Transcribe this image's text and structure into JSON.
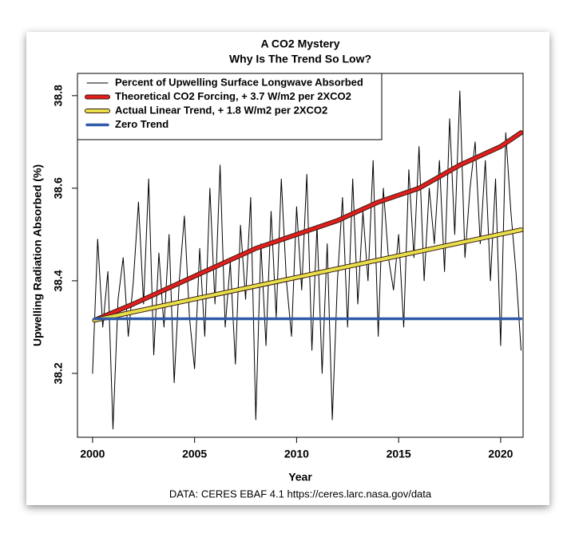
{
  "chart_data": {
    "type": "line",
    "title": "A CO2 Mystery",
    "subtitle": "Why Is The Trend So Low?",
    "x_label": "Year",
    "y_label": "Upwelling Radiation Absorbed (%)",
    "caption": "DATA: CERES EBAF 4.1 https://ceres.larc.nasa.gov/data",
    "xlim": [
      1999.26,
      2021.1
    ],
    "ylim": [
      38.062,
      38.848
    ],
    "xticks": [
      2000,
      2005,
      2010,
      2015,
      2020
    ],
    "yticks": [
      38.2,
      38.4,
      38.6,
      38.8
    ],
    "legend": "top-left",
    "series": [
      {
        "name": "Percent of Upwelling Surface Longwave Absorbed",
        "color": "#000000",
        "width": 1,
        "x": [
          2000,
          2000.25,
          2000.5,
          2000.75,
          2001,
          2001.25,
          2001.5,
          2001.75,
          2002,
          2002.25,
          2002.5,
          2002.75,
          2003,
          2003.25,
          2003.5,
          2003.75,
          2004,
          2004.25,
          2004.5,
          2004.75,
          2005,
          2005.25,
          2005.5,
          2005.75,
          2006,
          2006.25,
          2006.5,
          2006.75,
          2007,
          2007.25,
          2007.5,
          2007.75,
          2008,
          2008.25,
          2008.5,
          2008.75,
          2009,
          2009.25,
          2009.5,
          2009.75,
          2010,
          2010.25,
          2010.5,
          2010.75,
          2011,
          2011.25,
          2011.5,
          2011.75,
          2012,
          2012.25,
          2012.5,
          2012.75,
          2013,
          2013.25,
          2013.5,
          2013.75,
          2014,
          2014.25,
          2014.5,
          2014.75,
          2015,
          2015.25,
          2015.5,
          2015.75,
          2016,
          2016.25,
          2016.5,
          2016.75,
          2017,
          2017.25,
          2017.5,
          2017.75,
          2018,
          2018.25,
          2018.5,
          2018.75,
          2019,
          2019.25,
          2019.5,
          2019.75,
          2020,
          2020.25,
          2020.5,
          2020.75,
          2021
        ],
        "values": [
          38.2,
          38.49,
          38.3,
          38.42,
          38.08,
          38.36,
          38.45,
          38.28,
          38.4,
          38.57,
          38.35,
          38.62,
          38.24,
          38.46,
          38.3,
          38.5,
          38.18,
          38.4,
          38.54,
          38.32,
          38.21,
          38.47,
          38.28,
          38.6,
          38.35,
          38.65,
          38.3,
          38.44,
          38.22,
          38.52,
          38.36,
          38.58,
          38.1,
          38.48,
          38.26,
          38.55,
          38.32,
          38.62,
          38.4,
          38.28,
          38.56,
          38.38,
          38.63,
          38.25,
          38.52,
          38.2,
          38.48,
          38.1,
          38.4,
          38.58,
          38.3,
          38.62,
          38.35,
          38.55,
          38.4,
          38.66,
          38.28,
          38.6,
          38.45,
          38.38,
          38.5,
          38.3,
          38.64,
          38.45,
          38.69,
          38.4,
          38.6,
          38.48,
          38.66,
          38.42,
          38.75,
          38.5,
          38.81,
          38.45,
          38.6,
          38.7,
          38.48,
          38.66,
          38.4,
          38.62,
          38.26,
          38.72,
          38.55,
          38.42,
          38.25
        ]
      },
      {
        "name": "Theoretical CO2 Forcing, + 3.7 W/m2 per 2XCO2",
        "color": "#e01e1e",
        "width": 4,
        "outline": true,
        "x": [
          2000.1,
          2002,
          2004,
          2006,
          2008,
          2010,
          2012,
          2014,
          2016,
          2018,
          2020,
          2021
        ],
        "values": [
          38.315,
          38.35,
          38.39,
          38.43,
          38.47,
          38.5,
          38.53,
          38.57,
          38.6,
          38.65,
          38.69,
          38.72
        ]
      },
      {
        "name": "Actual Linear Trend, + 1.8 W/m2 per 2XCO2",
        "color": "#e8e04a",
        "width": 4,
        "outline": true,
        "x": [
          2000.1,
          2021
        ],
        "values": [
          38.315,
          38.51
        ]
      },
      {
        "name": "Zero Trend",
        "color": "#2f5aa8",
        "width": 3.5,
        "outline": false,
        "x": [
          2000.1,
          2021
        ],
        "values": [
          38.318,
          38.318
        ]
      }
    ]
  }
}
